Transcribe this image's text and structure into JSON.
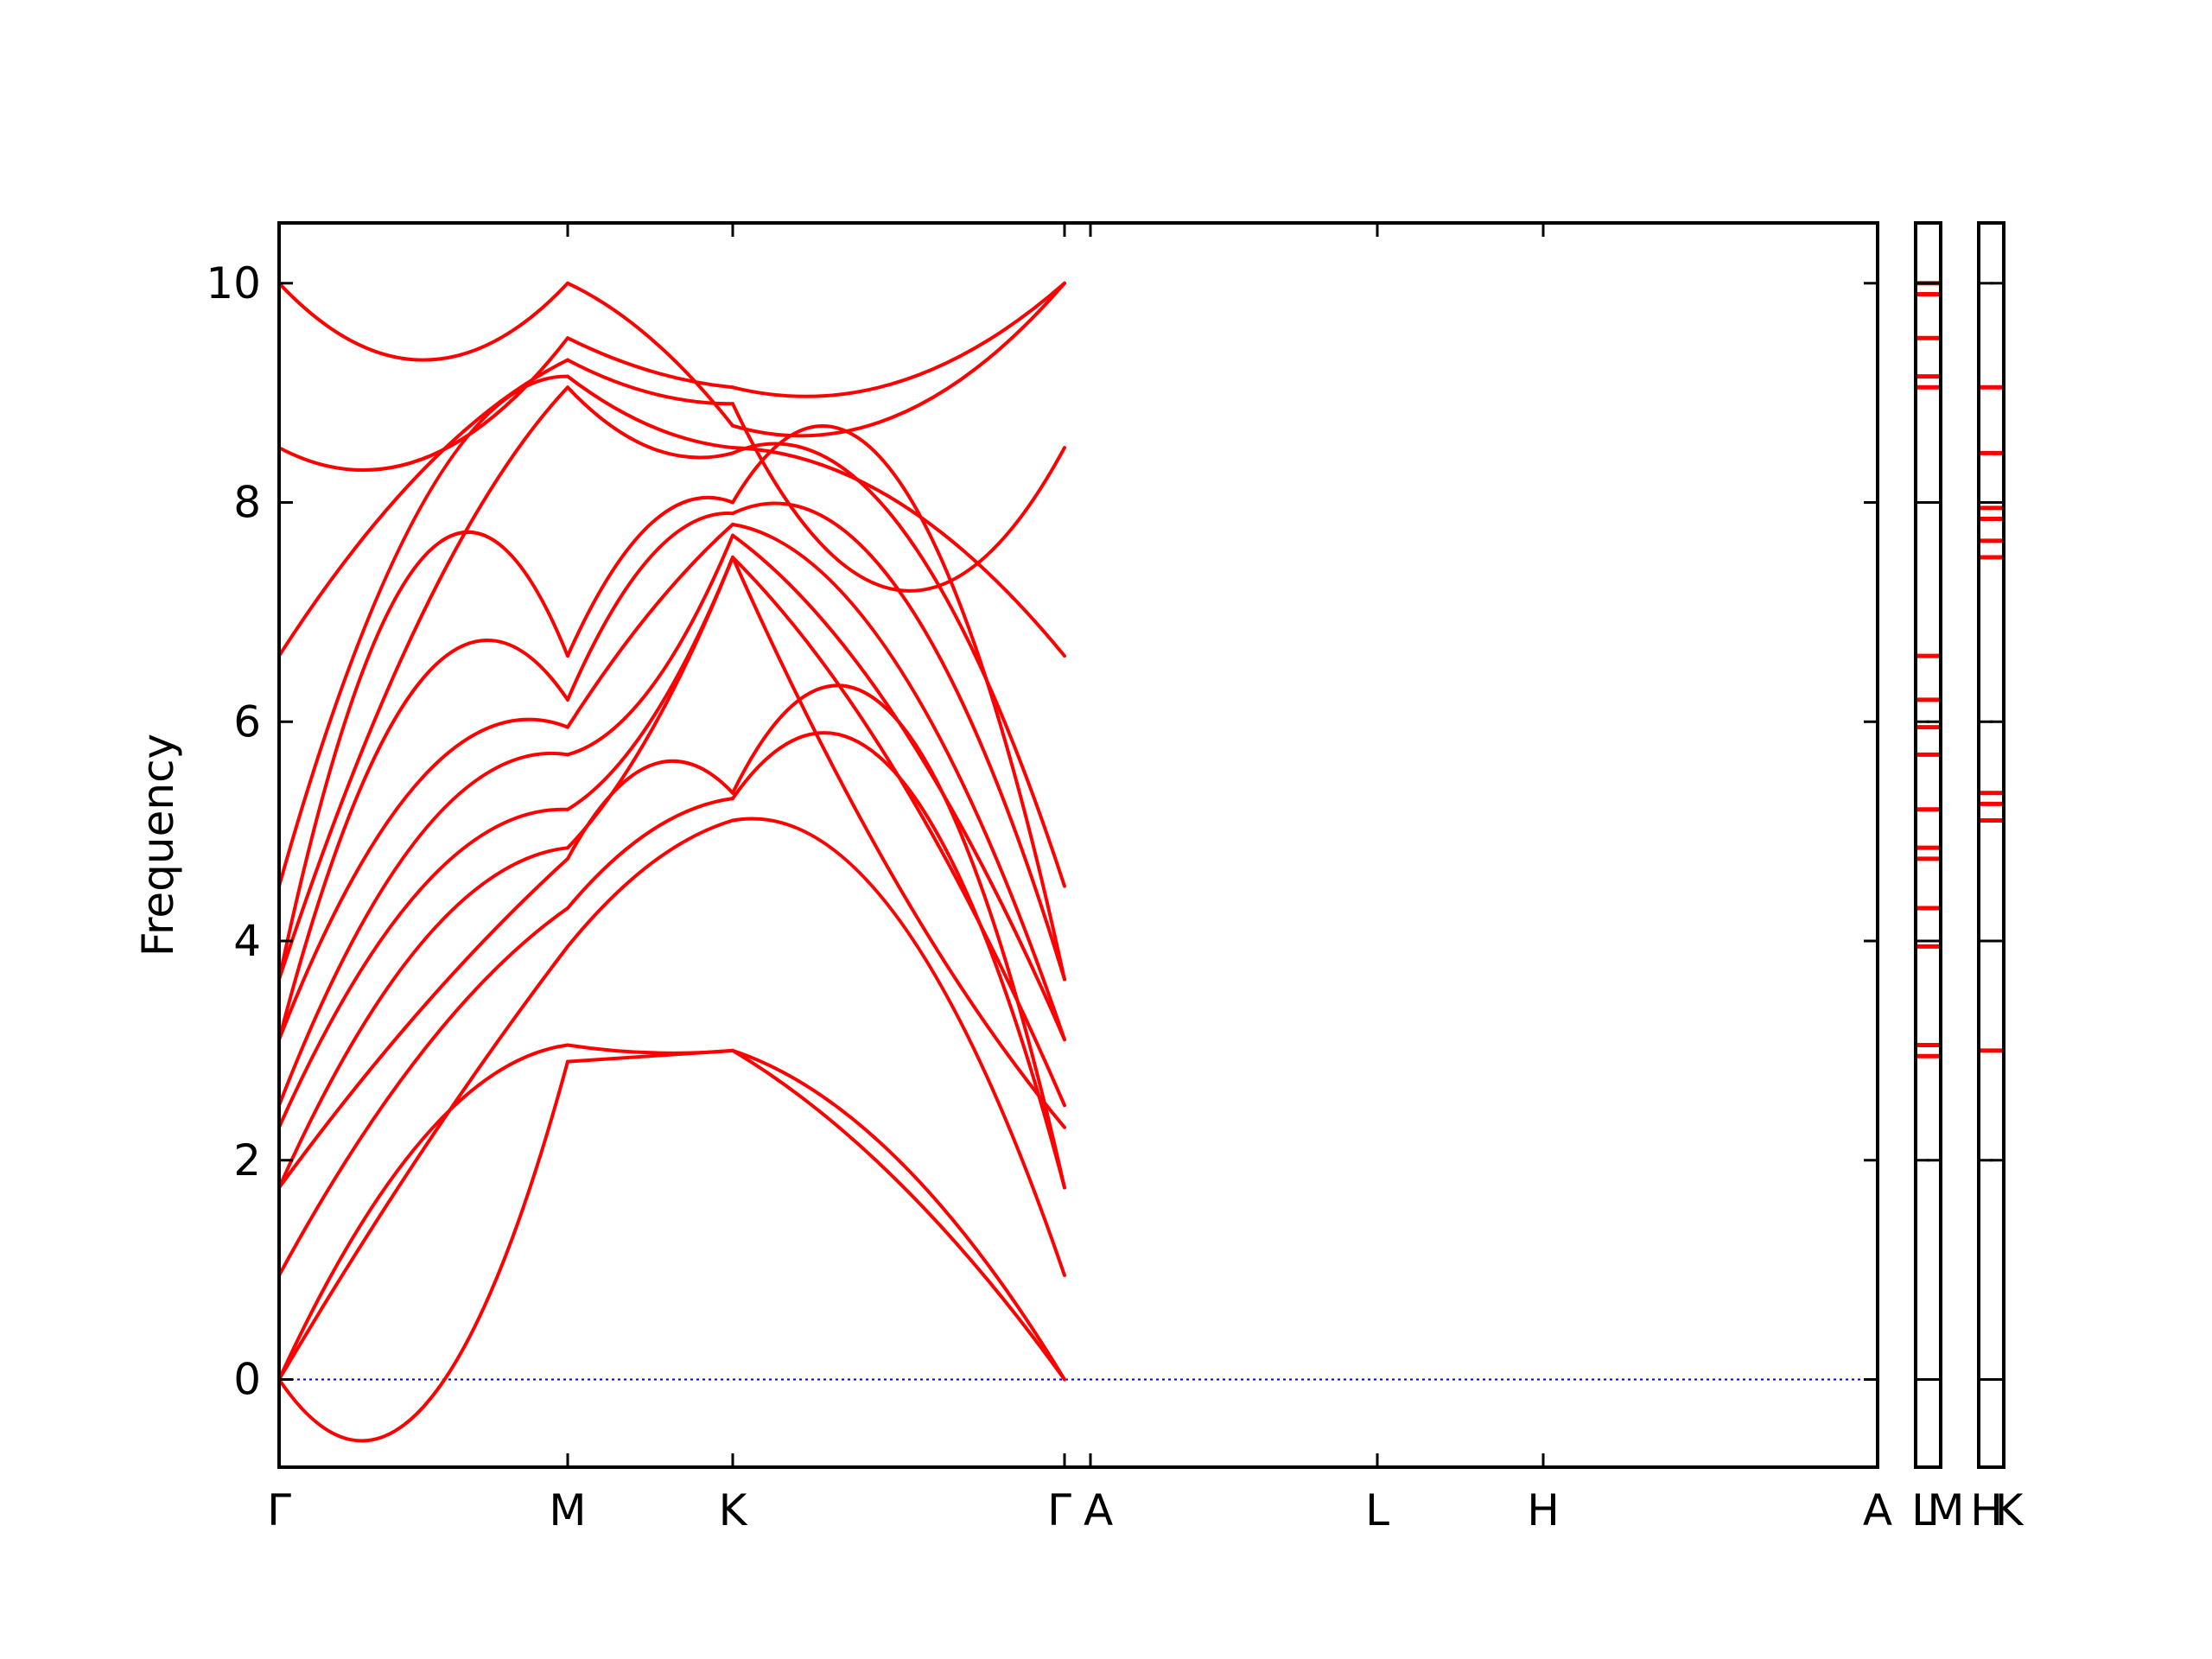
{
  "chart_data": {
    "type": "line",
    "ylabel": "Frequency",
    "ylim": [
      -0.8,
      10.55
    ],
    "y_ticks": [
      0,
      2,
      4,
      6,
      8,
      10
    ],
    "x_ticks": [
      "Γ",
      "M",
      "K",
      "Γ",
      "A",
      "L",
      "H",
      "A"
    ],
    "dos_ticks": [
      "L",
      "M",
      "H",
      "K"
    ],
    "colors": {
      "band": "#ff0000",
      "zero_line": "#0000cc"
    },
    "segments": [
      "Γ–M",
      "M–K",
      "K–Γ",
      "A–L",
      "L–H",
      "H–A"
    ],
    "series": [
      {
        "values": [
          [
            0,
            -0.25,
            2.9
          ],
          [
            2.9,
            2.95,
            3.0
          ],
          [
            3.0,
            2.0,
            0
          ]
        ]
      },
      {
        "values": [
          [
            0,
            2.2,
            3.05
          ],
          [
            3.05,
            2.98,
            3.0
          ],
          [
            3.0,
            1.8,
            0
          ]
        ]
      },
      {
        "values": [
          [
            0,
            2.1,
            3.95
          ],
          [
            3.95,
            4.7,
            5.1
          ],
          [
            5.1,
            4.2,
            0.95
          ]
        ]
      },
      {
        "values": [
          [
            0.95,
            3.0,
            4.3
          ],
          [
            4.3,
            5.0,
            5.3
          ],
          [
            5.3,
            5.5,
            1.75
          ]
        ]
      },
      {
        "values": [
          [
            1.75,
            3.4,
            4.75
          ],
          [
            4.75,
            5.6,
            5.35
          ],
          [
            5.35,
            6.0,
            1.75
          ]
        ]
      },
      {
        "values": [
          [
            1.75,
            4.0,
            4.85
          ],
          [
            4.85,
            5.9,
            7.5
          ],
          [
            7.5,
            4.5,
            2.3
          ]
        ]
      },
      {
        "values": [
          [
            2.3,
            4.5,
            5.2
          ],
          [
            5.2,
            6.0,
            7.5
          ],
          [
            7.5,
            5.5,
            2.5
          ]
        ]
      },
      {
        "values": [
          [
            2.5,
            5.0,
            5.7
          ],
          [
            5.7,
            6.3,
            7.7
          ],
          [
            7.7,
            6.0,
            3.1
          ]
        ]
      },
      {
        "values": [
          [
            3.1,
            5.5,
            5.95
          ],
          [
            5.95,
            7.0,
            7.8
          ],
          [
            7.8,
            6.5,
            3.1
          ]
        ]
      },
      {
        "values": [
          [
            3.1,
            6.4,
            6.2
          ],
          [
            6.2,
            7.5,
            7.9
          ],
          [
            7.9,
            7.2,
            3.65
          ]
        ]
      },
      {
        "values": [
          [
            3.65,
            7.5,
            6.6
          ],
          [
            6.6,
            7.8,
            8.0
          ],
          [
            8.0,
            8.2,
            3.65
          ]
        ]
      },
      {
        "values": [
          [
            3.65,
            7.0,
            9.05
          ],
          [
            9.05,
            8.5,
            8.45
          ],
          [
            8.45,
            7.8,
            4.5
          ]
        ]
      },
      {
        "values": [
          [
            4.5,
            8.0,
            9.15
          ],
          [
            9.15,
            8.7,
            8.5
          ],
          [
            8.5,
            8.0,
            6.6
          ]
        ]
      },
      {
        "values": [
          [
            6.6,
            8.3,
            9.3
          ],
          [
            9.3,
            9.0,
            8.9
          ],
          [
            8.9,
            7.2,
            8.5
          ]
        ]
      },
      {
        "values": [
          [
            8.5,
            8.4,
            9.5
          ],
          [
            9.5,
            9.2,
            9.05
          ],
          [
            9.05,
            9.1,
            10.0
          ]
        ]
      },
      {
        "values": [
          [
            10.0,
            9.3,
            10.0
          ],
          [
            10.0,
            9.5,
            8.7
          ],
          [
            8.7,
            8.8,
            10.0
          ]
        ]
      }
    ],
    "dos_panel_1_bands": [
      10.0,
      9.9,
      9.5,
      9.15,
      9.05,
      6.6,
      6.2,
      5.95,
      5.7,
      5.2,
      4.85,
      4.75,
      4.3,
      3.95,
      3.05,
      2.95
    ],
    "dos_panel_2_bands": [
      9.05,
      8.45,
      7.95,
      7.85,
      7.65,
      7.5,
      5.35,
      5.25,
      5.1,
      3.0
    ]
  }
}
